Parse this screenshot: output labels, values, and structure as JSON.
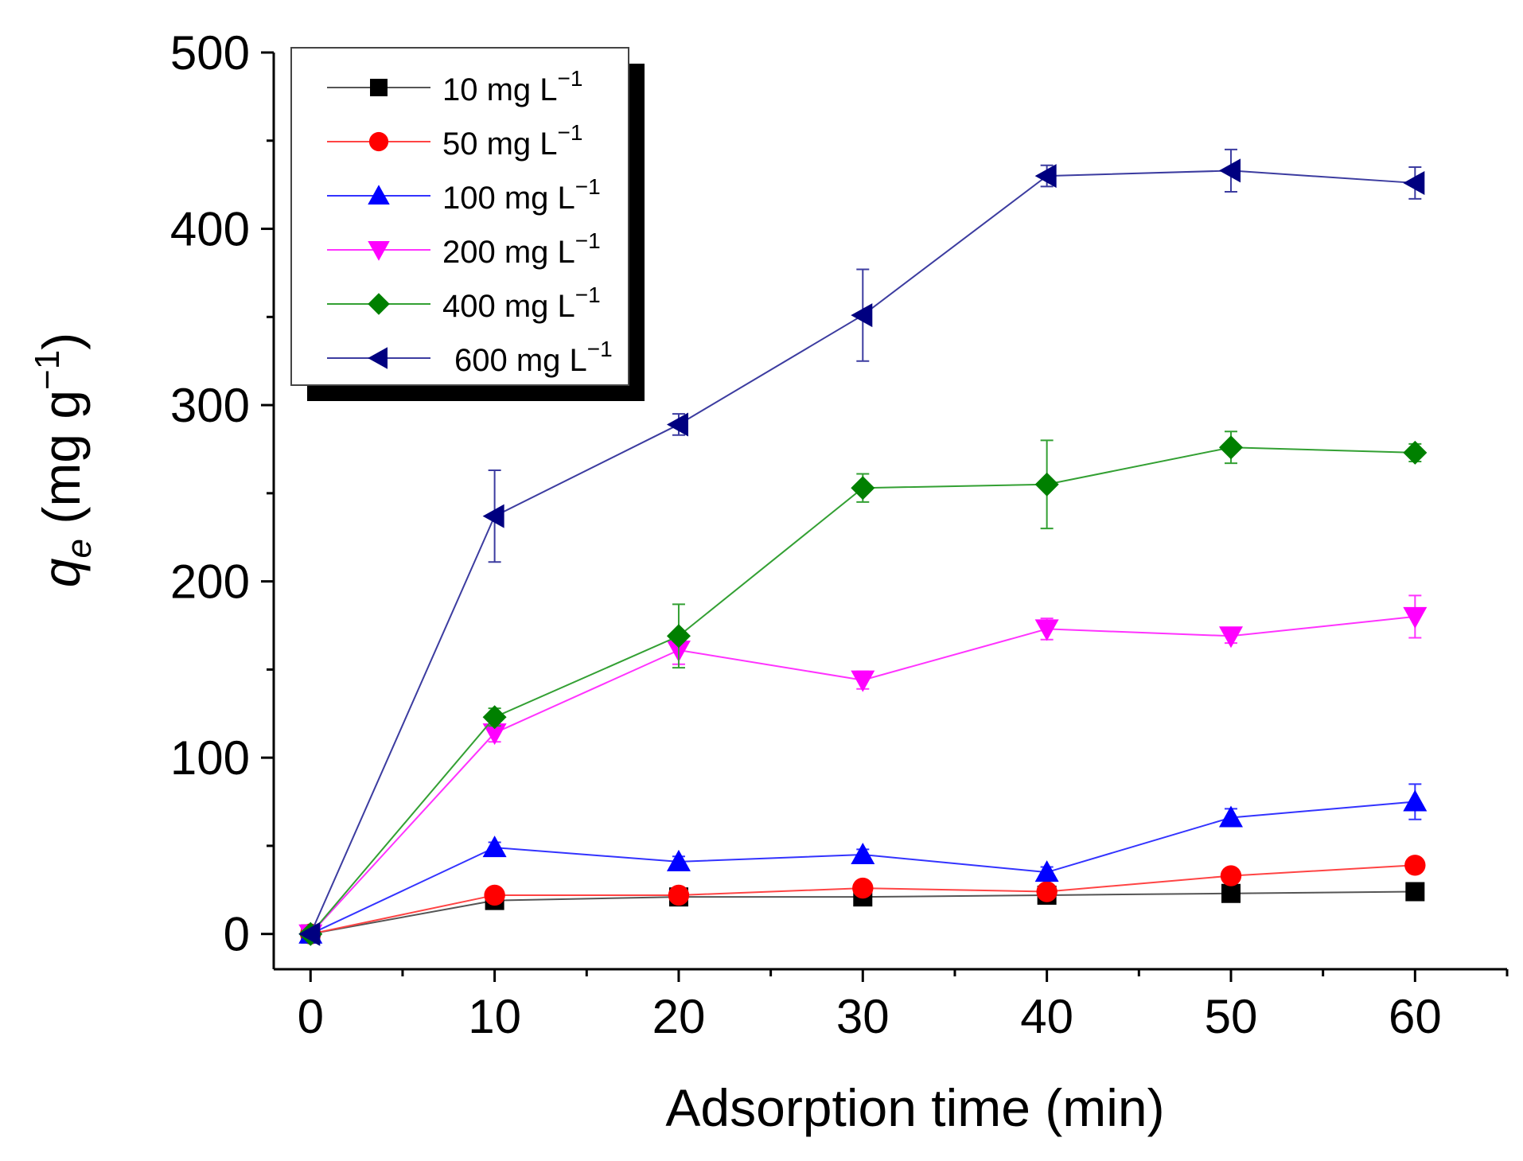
{
  "chart_data": {
    "type": "line",
    "title": "",
    "xlabel": "Adsorption time (min)",
    "ylabel": {
      "symbol": "q",
      "subscript": "e",
      "units_prefix": " (mg g",
      "units_exponent": "−1",
      "units_suffix": ")"
    },
    "xlim": [
      -2,
      65
    ],
    "ylim": [
      -20,
      500
    ],
    "x_ticks": [
      0,
      10,
      20,
      30,
      40,
      50,
      60
    ],
    "x_tick_labels": [
      "0",
      "10",
      "20",
      "30",
      "40",
      "50",
      "60"
    ],
    "x_minor_ticks": [
      5,
      15,
      25,
      35,
      45,
      55,
      65
    ],
    "y_ticks": [
      0,
      100,
      200,
      300,
      400,
      500
    ],
    "y_tick_labels": [
      "0",
      "100",
      "200",
      "300",
      "400",
      "500"
    ],
    "y_minor_ticks": [
      50,
      150,
      250,
      350,
      450
    ],
    "grid": false,
    "legend_position": "top-left",
    "x": [
      0,
      10,
      20,
      30,
      40,
      50,
      60
    ],
    "series": [
      {
        "name": "10 mg L",
        "exponent": "−1",
        "color": "#000000",
        "line_color": "#555555",
        "marker": "square",
        "values": [
          0,
          19,
          21,
          21,
          22,
          23,
          24
        ],
        "errors": [
          0,
          2,
          2,
          2,
          2,
          2,
          2
        ]
      },
      {
        "name": "50 mg L",
        "exponent": "−1",
        "color": "#ff0000",
        "line_color": "#ff4444",
        "marker": "circle",
        "values": [
          0,
          22,
          22,
          26,
          24,
          33,
          39
        ],
        "errors": [
          0,
          3,
          3,
          3,
          3,
          4,
          4
        ]
      },
      {
        "name": "100 mg L",
        "exponent": "−1",
        "color": "#0000ff",
        "line_color": "#3333ff",
        "marker": "triangle-up",
        "values": [
          0,
          49,
          41,
          45,
          35,
          66,
          75
        ],
        "errors": [
          0,
          3,
          3,
          3,
          3,
          5,
          10
        ]
      },
      {
        "name": "200 mg L",
        "exponent": "−1",
        "color": "#ff00ff",
        "line_color": "#ff33ff",
        "marker": "triangle-down",
        "values": [
          0,
          114,
          161,
          144,
          173,
          169,
          180
        ],
        "errors": [
          0,
          5,
          8,
          5,
          6,
          4,
          12
        ]
      },
      {
        "name": "400 mg L",
        "exponent": "−1",
        "color": "#008000",
        "line_color": "#33a033",
        "marker": "diamond",
        "values": [
          0,
          123,
          169,
          253,
          255,
          276,
          273
        ],
        "errors": [
          0,
          5,
          18,
          8,
          25,
          9,
          5
        ]
      },
      {
        "name": "600 mg L",
        "exponent": "−1",
        "color": "#000080",
        "line_color": "#3c3ca0",
        "marker": "triangle-left",
        "values": [
          0,
          237,
          289,
          351,
          430,
          433,
          426
        ],
        "errors": [
          0,
          26,
          6,
          26,
          6,
          12,
          9
        ]
      }
    ]
  }
}
